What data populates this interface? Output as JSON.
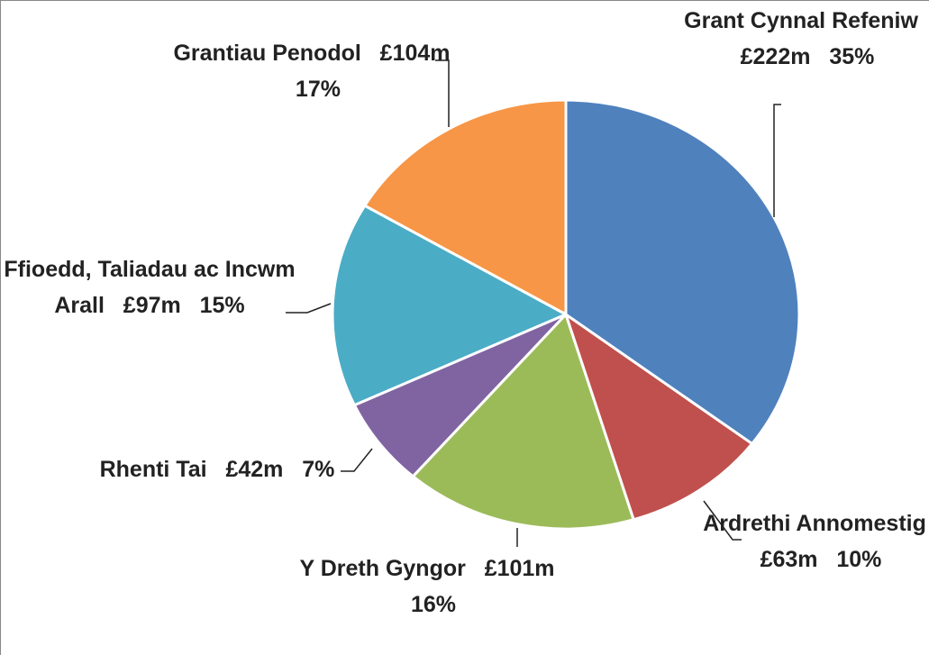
{
  "chart_data": {
    "type": "pie",
    "categories": [
      "Grant Cynnal Refeniw",
      "Ardrethi Annomestig",
      "Y Dreth Gyngor",
      "Rhenti Tai",
      "Ffioedd, Taliadau ac Incwm Arall",
      "Grantiau Penodol"
    ],
    "values": [
      222,
      63,
      101,
      42,
      97,
      104
    ],
    "value_labels": [
      "£222m",
      "£63m",
      "£101m",
      "£42m",
      "£97m",
      "£104m"
    ],
    "percent_labels": [
      "35%",
      "10%",
      "16%",
      "7%",
      "15%",
      "17%"
    ],
    "colors": [
      "#4f81bd",
      "#c0504d",
      "#9bbb59",
      "#8064a2",
      "#4bacc6",
      "#f79646"
    ]
  }
}
